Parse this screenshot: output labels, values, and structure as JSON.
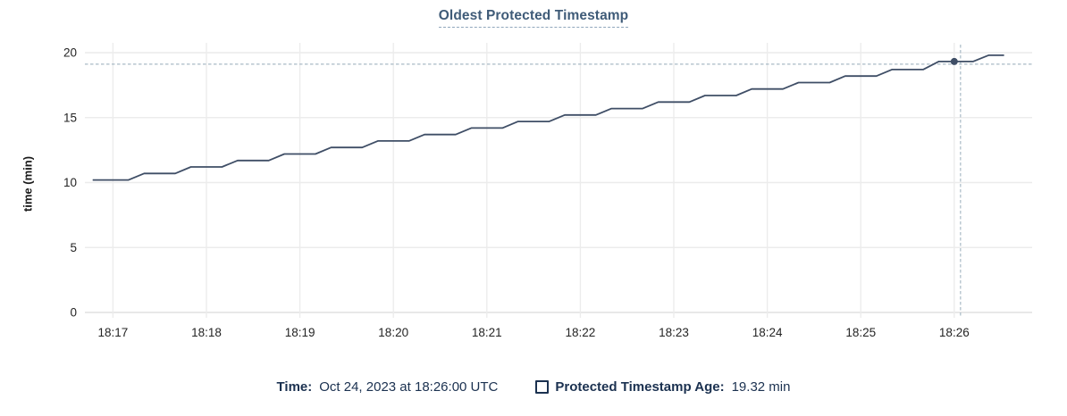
{
  "footer": {
    "time_label": "Time:",
    "time_value": "Oct 24, 2023 at 18:26:00 UTC",
    "series_label": "Protected Timestamp Age:",
    "series_value": "19.32 min"
  },
  "colors": {
    "background": "#ffffff",
    "line": "#3f4e66",
    "dot": "#3f4e66",
    "grid": "#ececec",
    "grid_zero": "#e0e0e0",
    "tick_stub": "#dcdcdc",
    "axis_text": "#242424",
    "title_text": "#3f5b78",
    "title_underline": "#8fa6bb",
    "footer_text": "#1b3150",
    "crosshair": "#a9bac6"
  },
  "chart_data": {
    "type": "line",
    "title": "Oldest Protected Timestamp",
    "ylabel": "time (min)",
    "grid": true,
    "legend_position": "bottom",
    "ylim": [
      0,
      20
    ],
    "yticks": [
      0,
      5,
      10,
      15,
      20
    ],
    "x_unit": "seconds relative to 18:17:00",
    "xlim": [
      -18,
      590
    ],
    "xticks": [
      {
        "t": 0,
        "label": "18:17"
      },
      {
        "t": 60,
        "label": "18:18"
      },
      {
        "t": 120,
        "label": "18:19"
      },
      {
        "t": 180,
        "label": "18:20"
      },
      {
        "t": 240,
        "label": "18:21"
      },
      {
        "t": 300,
        "label": "18:22"
      },
      {
        "t": 360,
        "label": "18:23"
      },
      {
        "t": 420,
        "label": "18:24"
      },
      {
        "t": 480,
        "label": "18:25"
      },
      {
        "t": 540,
        "label": "18:26"
      }
    ],
    "series": [
      {
        "name": "Protected Timestamp Age",
        "points": [
          [
            -13,
            10.2
          ],
          [
            10,
            10.2
          ],
          [
            20,
            10.7
          ],
          [
            40,
            10.7
          ],
          [
            50,
            11.2
          ],
          [
            70,
            11.2
          ],
          [
            80,
            11.7
          ],
          [
            100,
            11.7
          ],
          [
            110,
            12.2
          ],
          [
            130,
            12.2
          ],
          [
            140,
            12.7
          ],
          [
            160,
            12.7
          ],
          [
            170,
            13.2
          ],
          [
            190,
            13.2
          ],
          [
            200,
            13.7
          ],
          [
            220,
            13.7
          ],
          [
            230,
            14.2
          ],
          [
            250,
            14.2
          ],
          [
            260,
            14.7
          ],
          [
            280,
            14.7
          ],
          [
            290,
            15.2
          ],
          [
            310,
            15.2
          ],
          [
            320,
            15.7
          ],
          [
            340,
            15.7
          ],
          [
            350,
            16.2
          ],
          [
            370,
            16.2
          ],
          [
            380,
            16.7
          ],
          [
            400,
            16.7
          ],
          [
            410,
            17.2
          ],
          [
            430,
            17.2
          ],
          [
            440,
            17.7
          ],
          [
            460,
            17.7
          ],
          [
            470,
            18.2
          ],
          [
            490,
            18.2
          ],
          [
            500,
            18.7
          ],
          [
            520,
            18.7
          ],
          [
            530,
            19.32
          ],
          [
            552,
            19.32
          ],
          [
            562,
            19.8
          ],
          [
            572,
            19.8
          ]
        ]
      }
    ],
    "hover": {
      "t": 540,
      "time_label": "Oct 24, 2023 at 18:26:00 UTC",
      "value": 19.32,
      "value_label": "19.32 min"
    }
  }
}
